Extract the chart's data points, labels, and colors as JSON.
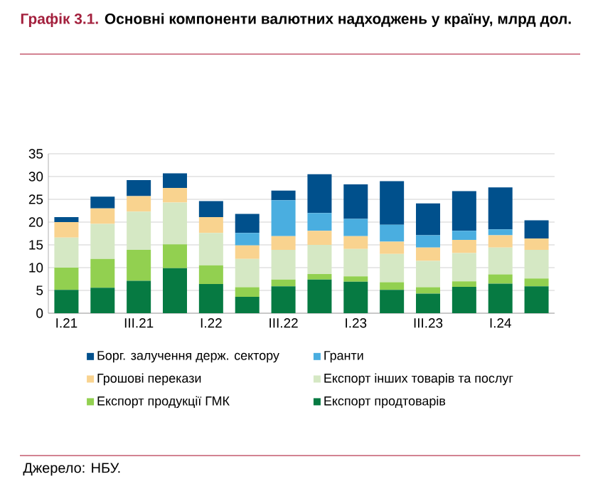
{
  "chart_data": {
    "type": "bar",
    "stacked": true,
    "title": "Графік 3.1.",
    "subtitle": "Основні компоненти валютних надходжень у країну, млрд дол.",
    "categories": [
      "I.21",
      null,
      "III.21",
      null,
      "I.22",
      null,
      "III.22",
      null,
      "I.23",
      null,
      "III.23",
      null,
      "I.24",
      null
    ],
    "series": [
      {
        "name": "Експорт продтоварів",
        "color": "#067a42",
        "values": [
          5.1,
          5.6,
          7.1,
          9.9,
          6.4,
          3.6,
          5.9,
          7.4,
          6.9,
          5.1,
          4.3,
          5.8,
          6.5,
          5.9
        ]
      },
      {
        "name": "Експорт продукції ГМК",
        "color": "#92d050",
        "values": [
          4.9,
          6.3,
          6.8,
          5.2,
          4.1,
          2.1,
          1.5,
          1.2,
          1.2,
          1.7,
          1.4,
          1.2,
          2.0,
          1.7
        ]
      },
      {
        "name": "Експорт інших товарів та послуг",
        "color": "#d5e8c4",
        "values": [
          6.6,
          7.7,
          8.4,
          9.2,
          7.1,
          6.2,
          6.5,
          6.4,
          6.0,
          6.2,
          5.8,
          6.2,
          5.9,
          6.3
        ]
      },
      {
        "name": "Грошові перекази",
        "color": "#f9d38f",
        "values": [
          3.4,
          3.4,
          3.4,
          3.2,
          3.5,
          3.0,
          3.0,
          3.1,
          2.8,
          2.7,
          2.9,
          2.9,
          2.7,
          2.5
        ]
      },
      {
        "name": "Гранти",
        "color": "#4aaee0",
        "values": [
          0,
          0,
          0,
          0,
          0,
          2.7,
          7.9,
          3.9,
          3.8,
          3.7,
          2.7,
          2.0,
          1.3,
          0
        ]
      },
      {
        "name": "Борг. залучення держ. сектору",
        "color": "#00508c",
        "values": [
          1.1,
          2.6,
          3.5,
          3.2,
          3.5,
          4.2,
          2.1,
          8.5,
          7.6,
          9.6,
          7.0,
          8.7,
          9.2,
          4.0
        ]
      }
    ],
    "ylim": [
      0,
      35
    ],
    "yticks": [
      0,
      5,
      10,
      15,
      20,
      25,
      30,
      35
    ],
    "grid": "y",
    "legend": "bottom",
    "annotations": [
      "Джерело: НБУ."
    ]
  }
}
